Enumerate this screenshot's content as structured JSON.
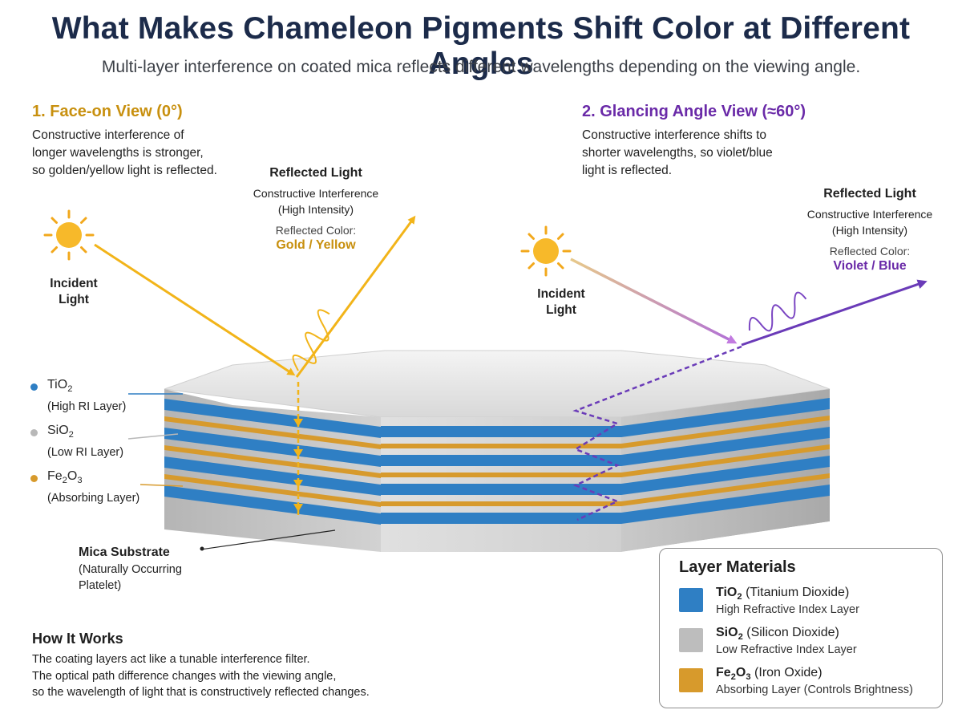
{
  "title": "What Makes Chameleon Pigments Shift Color at Different Angles",
  "subtitle": "Multi-layer interference on coated mica reflects different wavelengths depending on the viewing angle.",
  "face_on": {
    "heading": "1. Face-on View (0°)",
    "description": [
      "Constructive interference of",
      "longer wavelengths is stronger,",
      "so golden/yellow light is reflected."
    ],
    "incident_label": [
      "Incident",
      "Light"
    ],
    "reflected_title": "Reflected Light",
    "reflected_lines": [
      "Constructive Interference",
      "(High Intensity)"
    ],
    "reflected_color_label": "Reflected Color:",
    "reflected_color_value": "Gold / Yellow"
  },
  "glancing": {
    "heading": "2. Glancing Angle View (≈60°)",
    "description": [
      "Constructive interference shifts to",
      "shorter wavelengths, so violet/blue",
      "light is reflected."
    ],
    "incident_label": [
      "Incident",
      "Light"
    ],
    "reflected_title": "Reflected Light",
    "reflected_lines": [
      "Constructive Interference",
      "(High Intensity)"
    ],
    "reflected_color_label": "Reflected Color:",
    "reflected_color_value": "Violet / Blue"
  },
  "layer_labels": [
    {
      "formula": "TiO",
      "sub": "2",
      "sub2": "",
      "desc": "(High RI Layer)",
      "color": "#2f7fc4"
    },
    {
      "formula": "SiO",
      "sub": "2",
      "sub2": "",
      "desc": "(Low RI Layer)",
      "color": "#b8b8b8"
    },
    {
      "formula": "Fe",
      "sub": "2",
      "mid": "O",
      "sub2": "3",
      "desc": "(Absorbing Layer)",
      "color": "#d79a2c"
    }
  ],
  "substrate": {
    "name": "Mica Substrate",
    "lines": [
      "(Naturally Occurring",
      "Platelet)"
    ]
  },
  "how_it_works": {
    "heading": "How It Works",
    "lines": [
      "The coating layers act like a tunable interference filter.",
      "The optical path difference changes with the viewing angle,",
      "so the wavelength of light that is constructively reflected changes."
    ]
  },
  "legend": {
    "title": "Layer Materials",
    "items": [
      {
        "formula": "TiO",
        "sub": "2",
        "name": "(Titanium Dioxide)",
        "desc": "High Refractive Index Layer",
        "color": "#2f7fc4"
      },
      {
        "formula": "SiO",
        "sub": "2",
        "name": "(Silicon Dioxide)",
        "desc": "Low Refractive Index Layer",
        "color": "#bdbdbd"
      },
      {
        "formula": "Fe",
        "sub": "2",
        "mid": "O",
        "sub2": "3",
        "name": "(Iron Oxide)",
        "desc": "Absorbing Layer (Controls Brightness)",
        "color": "#d79a2c"
      }
    ]
  },
  "colors": {
    "gold": "#f2b419",
    "violet": "#6a3bb8",
    "tio2": "#2f7fc4",
    "sio2": "#c9c9c9",
    "fe2o3": "#d79a2c"
  }
}
